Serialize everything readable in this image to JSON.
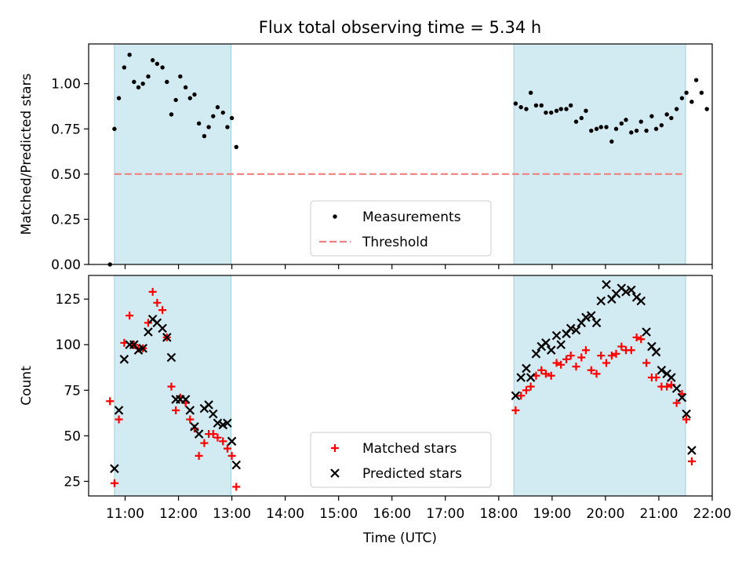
{
  "figure": {
    "title": "Flux total observing time = 5.34 h",
    "xlabel": "Time (UTC)",
    "x_ticks": [
      "11:00",
      "12:00",
      "13:00",
      "14:00",
      "15:00",
      "16:00",
      "17:00",
      "18:00",
      "19:00",
      "20:00",
      "21:00",
      "22:00"
    ],
    "shaded_color": "#add8e6"
  },
  "chart_data": [
    {
      "type": "scatter",
      "ylabel": "Matched/Predicted stars",
      "xlim": [
        "10:19",
        "22:00"
      ],
      "ylim": [
        0,
        1.22
      ],
      "y_ticks": [
        "0.00",
        "0.25",
        "0.50",
        "0.75",
        "1.00"
      ],
      "shaded_spans": [
        [
          "10:48",
          "12:59"
        ],
        [
          "18:17",
          "21:30"
        ]
      ],
      "threshold": {
        "y": 0.5,
        "x_range": [
          "10:48",
          "21:30"
        ]
      },
      "legend": {
        "position": "lower-center"
      },
      "series": [
        {
          "name": "Measurements",
          "marker": "dot",
          "color": "#000000",
          "points": [
            [
              "10:43",
              0.0
            ],
            [
              "10:48",
              0.75
            ],
            [
              "10:53",
              0.92
            ],
            [
              "10:59",
              1.09
            ],
            [
              "11:05",
              1.16
            ],
            [
              "11:10",
              1.01
            ],
            [
              "11:15",
              0.98
            ],
            [
              "11:20",
              1.0
            ],
            [
              "11:26",
              1.04
            ],
            [
              "11:31",
              1.13
            ],
            [
              "11:36",
              1.11
            ],
            [
              "11:42",
              1.09
            ],
            [
              "11:47",
              1.01
            ],
            [
              "11:52",
              0.83
            ],
            [
              "11:57",
              0.91
            ],
            [
              "12:02",
              1.04
            ],
            [
              "12:08",
              0.98
            ],
            [
              "12:13",
              0.92
            ],
            [
              "12:18",
              0.94
            ],
            [
              "12:23",
              0.78
            ],
            [
              "12:29",
              0.71
            ],
            [
              "12:34",
              0.76
            ],
            [
              "12:39",
              0.82
            ],
            [
              "12:44",
              0.87
            ],
            [
              "12:50",
              0.84
            ],
            [
              "12:55",
              0.76
            ],
            [
              "13:00",
              0.81
            ],
            [
              "13:05",
              0.65
            ],
            [
              "18:19",
              0.89
            ],
            [
              "18:25",
              0.87
            ],
            [
              "18:31",
              0.86
            ],
            [
              "18:36",
              0.95
            ],
            [
              "18:42",
              0.88
            ],
            [
              "18:48",
              0.88
            ],
            [
              "18:53",
              0.84
            ],
            [
              "18:59",
              0.84
            ],
            [
              "19:05",
              0.85
            ],
            [
              "19:10",
              0.86
            ],
            [
              "19:16",
              0.86
            ],
            [
              "19:21",
              0.88
            ],
            [
              "19:27",
              0.79
            ],
            [
              "19:33",
              0.81
            ],
            [
              "19:38",
              0.85
            ],
            [
              "19:44",
              0.74
            ],
            [
              "19:50",
              0.75
            ],
            [
              "19:55",
              0.76
            ],
            [
              "20:01",
              0.76
            ],
            [
              "20:07",
              0.68
            ],
            [
              "20:12",
              0.75
            ],
            [
              "20:18",
              0.78
            ],
            [
              "20:23",
              0.8
            ],
            [
              "20:29",
              0.73
            ],
            [
              "20:35",
              0.74
            ],
            [
              "20:40",
              0.79
            ],
            [
              "20:46",
              0.74
            ],
            [
              "20:52",
              0.82
            ],
            [
              "20:57",
              0.75
            ],
            [
              "21:03",
              0.77
            ],
            [
              "21:09",
              0.83
            ],
            [
              "21:14",
              0.81
            ],
            [
              "21:20",
              0.86
            ],
            [
              "21:26",
              0.92
            ],
            [
              "21:31",
              0.95
            ],
            [
              "21:37",
              0.9
            ],
            [
              "21:42",
              1.02
            ],
            [
              "21:48",
              0.95
            ],
            [
              "21:54",
              0.86
            ]
          ]
        },
        {
          "name": "Threshold",
          "marker": "dashed-line",
          "color": "#f08080"
        }
      ]
    },
    {
      "type": "scatter",
      "ylabel": "Count",
      "xlim": [
        "10:19",
        "22:00"
      ],
      "ylim": [
        17,
        138
      ],
      "y_ticks": [
        "25",
        "50",
        "75",
        "100",
        "125"
      ],
      "shaded_spans": [
        [
          "10:48",
          "12:59"
        ],
        [
          "18:17",
          "21:30"
        ]
      ],
      "legend": {
        "position": "lower-center"
      },
      "series": [
        {
          "name": "Matched stars",
          "marker": "plus",
          "color": "#ff0000",
          "points": [
            [
              "10:43",
              69
            ],
            [
              "10:48",
              24
            ],
            [
              "10:53",
              59
            ],
            [
              "10:59",
              101
            ],
            [
              "11:05",
              116
            ],
            [
              "11:10",
              100
            ],
            [
              "11:15",
              98
            ],
            [
              "11:20",
              98
            ],
            [
              "11:26",
              112
            ],
            [
              "11:31",
              129
            ],
            [
              "11:36",
              123
            ],
            [
              "11:42",
              119
            ],
            [
              "11:47",
              104
            ],
            [
              "11:52",
              77
            ],
            [
              "11:57",
              64
            ],
            [
              "12:02",
              71
            ],
            [
              "12:08",
              68
            ],
            [
              "12:13",
              59
            ],
            [
              "12:18",
              54
            ],
            [
              "12:23",
              39
            ],
            [
              "12:29",
              46
            ],
            [
              "12:34",
              51
            ],
            [
              "12:39",
              51
            ],
            [
              "12:44",
              49
            ],
            [
              "12:50",
              47
            ],
            [
              "12:55",
              43
            ],
            [
              "13:00",
              39
            ],
            [
              "13:05",
              22
            ],
            [
              "18:19",
              64
            ],
            [
              "18:25",
              72
            ],
            [
              "18:31",
              75
            ],
            [
              "18:36",
              77
            ],
            [
              "18:42",
              83
            ],
            [
              "18:48",
              86
            ],
            [
              "18:53",
              84
            ],
            [
              "18:59",
              83
            ],
            [
              "19:05",
              90
            ],
            [
              "19:10",
              89
            ],
            [
              "19:16",
              92
            ],
            [
              "19:21",
              94
            ],
            [
              "19:27",
              88
            ],
            [
              "19:33",
              93
            ],
            [
              "19:38",
              97
            ],
            [
              "19:44",
              86
            ],
            [
              "19:50",
              84
            ],
            [
              "19:55",
              94
            ],
            [
              "20:01",
              90
            ],
            [
              "20:07",
              94
            ],
            [
              "20:12",
              95
            ],
            [
              "20:18",
              99
            ],
            [
              "20:23",
              97
            ],
            [
              "20:29",
              97
            ],
            [
              "20:35",
              104
            ],
            [
              "20:40",
              103
            ],
            [
              "20:46",
              90
            ],
            [
              "20:52",
              82
            ],
            [
              "20:57",
              82
            ],
            [
              "21:03",
              77
            ],
            [
              "21:09",
              77
            ],
            [
              "21:14",
              78
            ],
            [
              "21:20",
              68
            ],
            [
              "21:26",
              73
            ],
            [
              "21:31",
              59
            ],
            [
              "21:37",
              36
            ]
          ]
        },
        {
          "name": "Predicted stars",
          "marker": "x",
          "color": "#000000",
          "points": [
            [
              "10:48",
              32
            ],
            [
              "10:53",
              64
            ],
            [
              "10:59",
              92
            ],
            [
              "11:05",
              100
            ],
            [
              "11:10",
              100
            ],
            [
              "11:15",
              97
            ],
            [
              "11:20",
              98
            ],
            [
              "11:26",
              107
            ],
            [
              "11:31",
              114
            ],
            [
              "11:36",
              112
            ],
            [
              "11:42",
              109
            ],
            [
              "11:47",
              104
            ],
            [
              "11:52",
              93
            ],
            [
              "11:57",
              70
            ],
            [
              "12:02",
              70
            ],
            [
              "12:08",
              70
            ],
            [
              "12:13",
              64
            ],
            [
              "12:18",
              55
            ],
            [
              "12:23",
              51
            ],
            [
              "12:29",
              65
            ],
            [
              "12:34",
              67
            ],
            [
              "12:39",
              62
            ],
            [
              "12:44",
              57
            ],
            [
              "12:50",
              56
            ],
            [
              "12:55",
              57
            ],
            [
              "13:00",
              47
            ],
            [
              "13:05",
              34
            ],
            [
              "18:19",
              72
            ],
            [
              "18:25",
              82
            ],
            [
              "18:31",
              87
            ],
            [
              "18:36",
              82
            ],
            [
              "18:42",
              95
            ],
            [
              "18:48",
              99
            ],
            [
              "18:53",
              101
            ],
            [
              "18:59",
              97
            ],
            [
              "19:05",
              105
            ],
            [
              "19:10",
              100
            ],
            [
              "19:16",
              106
            ],
            [
              "19:21",
              109
            ],
            [
              "19:27",
              108
            ],
            [
              "19:33",
              112
            ],
            [
              "19:38",
              115
            ],
            [
              "19:44",
              116
            ],
            [
              "19:50",
              112
            ],
            [
              "19:55",
              124
            ],
            [
              "20:01",
              133
            ],
            [
              "20:07",
              125
            ],
            [
              "20:12",
              128
            ],
            [
              "20:18",
              131
            ],
            [
              "20:23",
              129
            ],
            [
              "20:29",
              130
            ],
            [
              "20:35",
              126
            ],
            [
              "20:40",
              124
            ],
            [
              "20:46",
              107
            ],
            [
              "20:52",
              99
            ],
            [
              "20:57",
              96
            ],
            [
              "21:03",
              86
            ],
            [
              "21:09",
              84
            ],
            [
              "21:14",
              82
            ],
            [
              "21:20",
              76
            ],
            [
              "21:26",
              71
            ],
            [
              "21:31",
              62
            ],
            [
              "21:37",
              42
            ]
          ]
        }
      ]
    }
  ]
}
